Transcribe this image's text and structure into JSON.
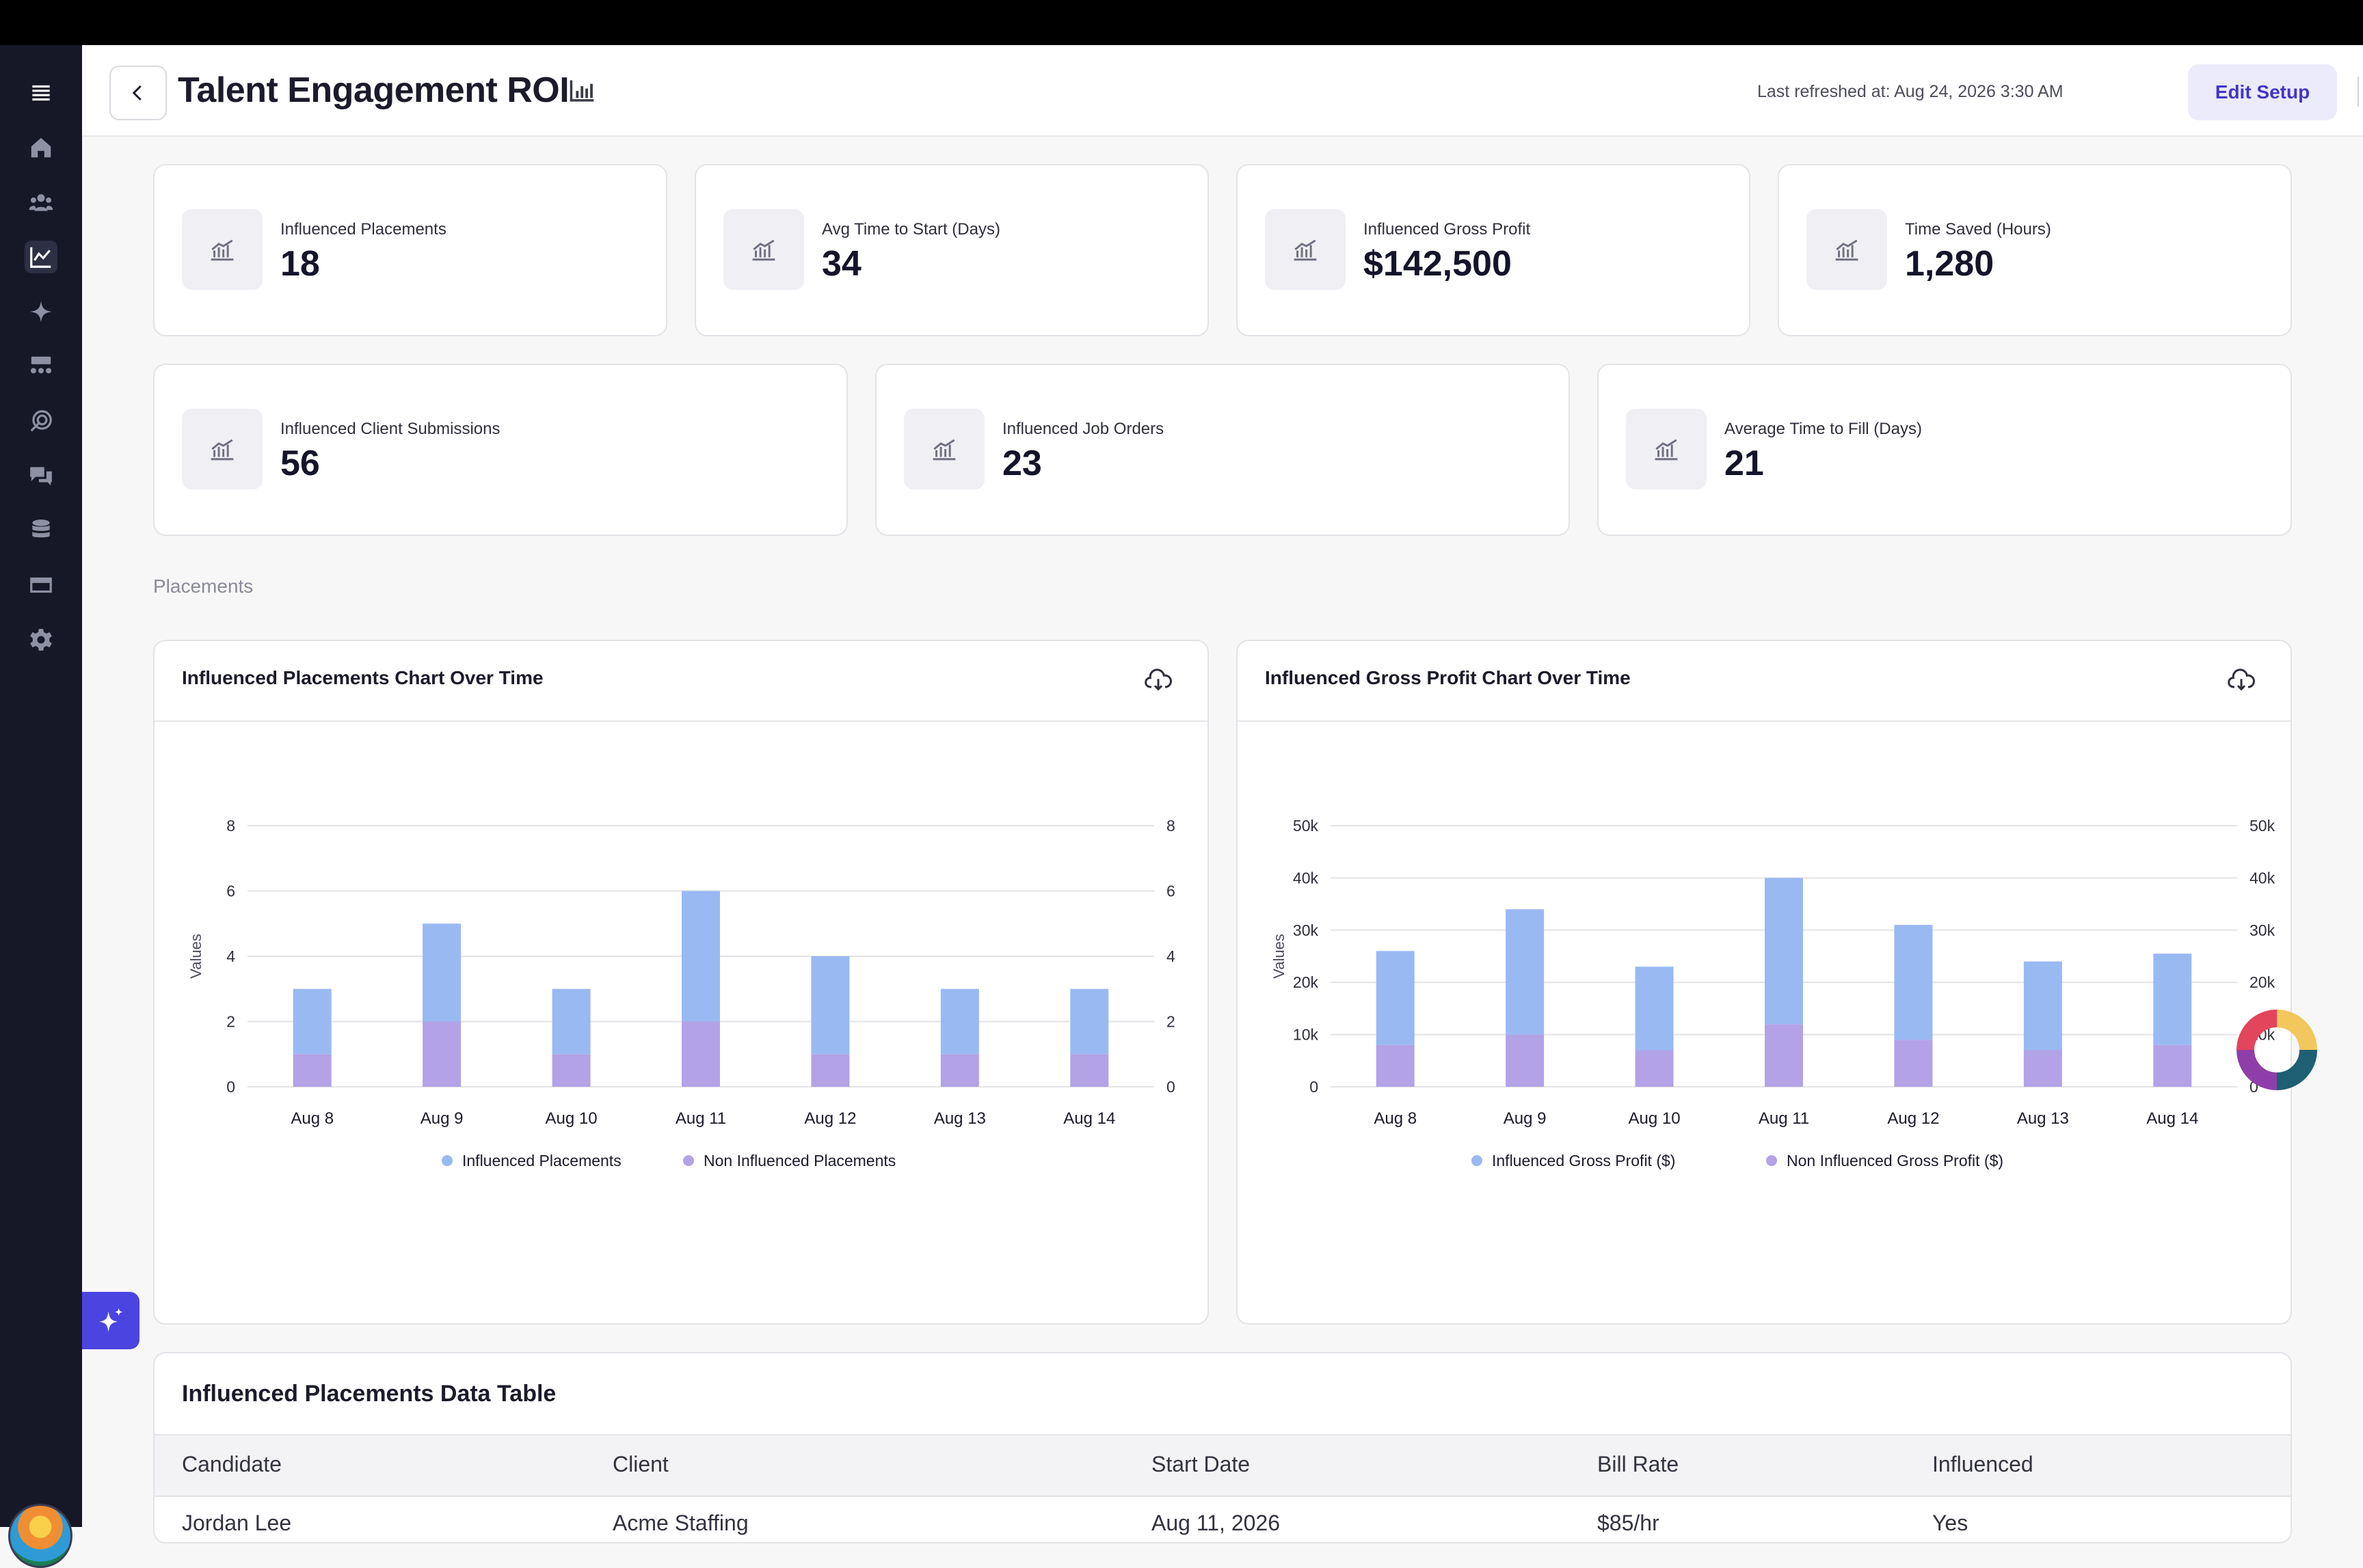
{
  "header": {
    "title": "Talent Engagement ROI",
    "last_refreshed": "Last refreshed at: Aug 24, 2026 3:30 AM",
    "edit_setup_label": "Edit Setup"
  },
  "sidebar": {
    "items": [
      {
        "icon": "menu-icon"
      },
      {
        "icon": "home-icon"
      },
      {
        "icon": "people-icon"
      },
      {
        "icon": "analytics-icon",
        "active": true
      },
      {
        "icon": "sparkle-icon"
      },
      {
        "icon": "org-icon"
      },
      {
        "icon": "target-icon"
      },
      {
        "icon": "chat-icon"
      },
      {
        "icon": "database-icon"
      },
      {
        "icon": "card-icon"
      },
      {
        "icon": "gear-icon"
      }
    ]
  },
  "kpis_row1": [
    {
      "label": "Influenced Placements",
      "value": "18"
    },
    {
      "label": "Avg Time to Start (Days)",
      "value": "34"
    },
    {
      "label": "Influenced Gross Profit",
      "value": "$142,500"
    },
    {
      "label": "Time Saved (Hours)",
      "value": "1,280"
    }
  ],
  "kpis_row2": [
    {
      "label": "Influenced Client Submissions",
      "value": "56"
    },
    {
      "label": "Influenced Job Orders",
      "value": "23"
    },
    {
      "label": "Average Time to Fill (Days)",
      "value": "21"
    }
  ],
  "section_label": "Placements",
  "chart_data": [
    {
      "type": "bar",
      "stacked": true,
      "title": "Influenced Placements Chart Over Time",
      "ylabel": "Values",
      "categories": [
        "Aug 8",
        "Aug 9",
        "Aug 10",
        "Aug 11",
        "Aug 12",
        "Aug 13",
        "Aug 14"
      ],
      "series": [
        {
          "name": "Non Influenced Placements",
          "color": "#b3a2e6",
          "values": [
            1,
            2,
            1,
            2,
            1,
            1,
            1
          ]
        },
        {
          "name": "Influenced Placements",
          "color": "#99b9f2",
          "values": [
            2,
            3,
            2,
            4,
            3,
            2,
            2
          ]
        }
      ],
      "ylim": [
        0,
        8
      ],
      "yticks": [
        "0",
        "2",
        "4",
        "6",
        "8"
      ],
      "ytick_values": [
        0,
        2,
        4,
        6,
        8
      ],
      "legend_order": [
        "Influenced Placements",
        "Non Influenced Placements"
      ],
      "legend": "bottom",
      "grid": true
    },
    {
      "type": "bar",
      "stacked": true,
      "title": "Influenced Gross Profit Chart Over Time",
      "ylabel": "Values",
      "categories": [
        "Aug 8",
        "Aug 9",
        "Aug 10",
        "Aug 11",
        "Aug 12",
        "Aug 13",
        "Aug 14"
      ],
      "series": [
        {
          "name": "Non Influenced Gross Profit ($)",
          "color": "#b3a2e6",
          "values": [
            8000,
            10000,
            7000,
            12000,
            9000,
            7000,
            8000
          ]
        },
        {
          "name": "Influenced Gross Profit ($)",
          "color": "#99b9f2",
          "values": [
            18000,
            24000,
            16000,
            28000,
            22000,
            17000,
            17500
          ]
        }
      ],
      "ylim": [
        0,
        50000
      ],
      "yticks": [
        "0",
        "10k",
        "20k",
        "30k",
        "40k",
        "50k"
      ],
      "ytick_values": [
        0,
        10000,
        20000,
        30000,
        40000,
        50000
      ],
      "legend_order": [
        "Influenced Gross Profit ($)",
        "Non Influenced Gross Profit ($)"
      ],
      "legend": "bottom",
      "grid": true
    }
  ],
  "table": {
    "title": "Influenced Placements Data Table",
    "columns": [
      "Candidate",
      "Client",
      "Start Date",
      "Bill Rate",
      "Influenced"
    ],
    "rows": [
      [
        "Jordan Lee",
        "Acme Staffing",
        "Aug 11, 2026",
        "$85/hr",
        "Yes"
      ]
    ]
  },
  "colors": {
    "accent": "#4b44e0",
    "sidebar": "#171827",
    "influenced": "#99b9f2",
    "non_influenced": "#b3a2e6"
  }
}
